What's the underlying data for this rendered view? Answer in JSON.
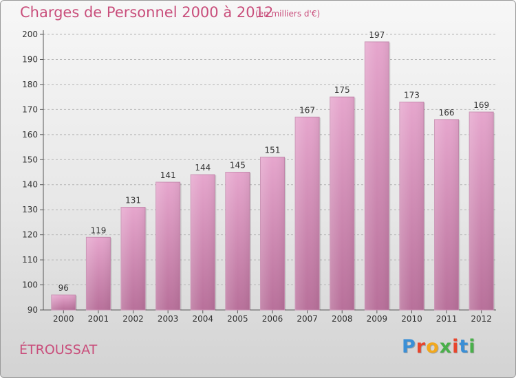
{
  "title": "Charges de Personnel 2000 à 2012",
  "subtitle": "(en milliers d'€)",
  "commune": "ÉTROUSSAT",
  "logo": {
    "text": "Proxiti",
    "colors": [
      "#3a8fd6",
      "#e8452c",
      "#f2a81d",
      "#49b04a",
      "#e8452c",
      "#3a8fd6",
      "#49b04a"
    ]
  },
  "colors": {
    "bar_top": "#e6a6cd",
    "bar_bottom": "#b8709a",
    "accent": "#c94f7c"
  },
  "chart_data": {
    "type": "bar",
    "categories": [
      "2000",
      "2001",
      "2002",
      "2003",
      "2004",
      "2005",
      "2006",
      "2007",
      "2008",
      "2009",
      "2010",
      "2011",
      "2012"
    ],
    "values": [
      96,
      119,
      131,
      141,
      144,
      145,
      151,
      167,
      175,
      197,
      173,
      166,
      169
    ],
    "ylim": [
      90,
      200
    ],
    "yticks": [
      90,
      100,
      110,
      120,
      130,
      140,
      150,
      160,
      170,
      180,
      190,
      200
    ],
    "grid": true,
    "xlabel": "",
    "ylabel": ""
  }
}
